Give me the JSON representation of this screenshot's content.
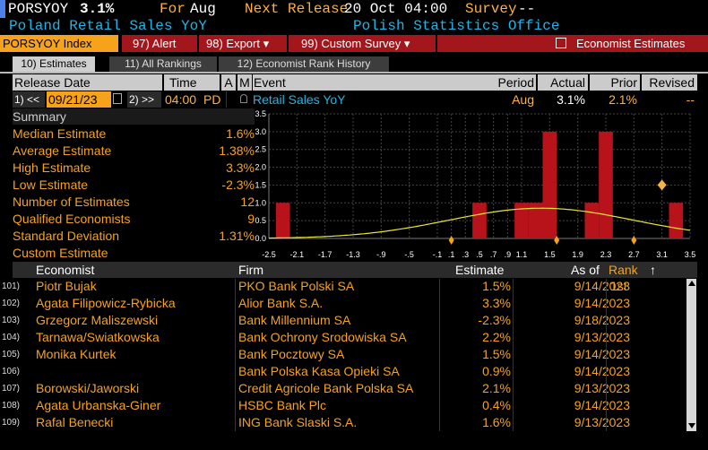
{
  "ticker": {
    "code": "PORSYOY",
    "value": "3.1%",
    "for_label": "For",
    "for_period": "Aug",
    "next_release_label": "Next Release",
    "next_release_value": "20 Oct 04:00",
    "survey_label": "Survey",
    "survey_value": "--",
    "name": "Poland Retail Sales YoY",
    "source": "Polish Statistics Office"
  },
  "menu": {
    "index_label": "PORSYOY Index",
    "alert": "97) Alert",
    "export": "98) Export ▾",
    "custom_survey": "99) Custom Survey ▾",
    "economist_estimates": "Economist Estimates"
  },
  "tabs": [
    {
      "label": "10) Estimates"
    },
    {
      "label": "11) All Rankings"
    },
    {
      "label": "12) Economist Rank History"
    }
  ],
  "event_header": {
    "release_date": "Release Date",
    "time": "Time",
    "a": "A",
    "m": "M",
    "event": "Event",
    "period": "Period",
    "actual": "Actual",
    "prior": "Prior",
    "revised": "Revised"
  },
  "event_row": {
    "prev_btn": "1) <<",
    "date": "09/21/23",
    "next_btn": "2) >>",
    "time": "04:00",
    "tz": "PD",
    "event": "Retail Sales YoY",
    "period": "Aug",
    "actual": "3.1%",
    "prior": "2.1%",
    "revised": "--"
  },
  "summary": {
    "title": "Summary",
    "rows": [
      {
        "label": "Median Estimate",
        "value": "1.6%"
      },
      {
        "label": "Average Estimate",
        "value": "1.38%"
      },
      {
        "label": "High Estimate",
        "value": "3.3%"
      },
      {
        "label": "Low Estimate",
        "value": "-2.3%"
      },
      {
        "label": "Number of Estimates",
        "value": "12"
      },
      {
        "label": "Qualified Economists",
        "value": "9"
      },
      {
        "label": "Standard Deviation",
        "value": "1.31%"
      },
      {
        "label": "Custom Estimate",
        "value": ""
      }
    ]
  },
  "chart_data": {
    "type": "bar",
    "categories": [
      "-2.5",
      "-2.1",
      "-1.7",
      "-1.3",
      "-.9",
      "-.5",
      "-.1",
      ".3",
      ".5",
      ".7",
      ".9",
      "1.1",
      "1.5",
      "1.9",
      "2.3",
      "2.7",
      "3.1",
      "3.5"
    ],
    "x_ticks": [
      "-2.5",
      "-2.1",
      "-1.7",
      "-1.3",
      "-.9",
      "-.5",
      "-.1",
      ".1",
      ".3",
      ".5",
      ".7",
      ".9",
      "1.1",
      "1.5",
      "1.9",
      "2.3",
      "2.7",
      "3.1",
      "3.5"
    ],
    "y_ticks": [
      "0.0",
      "0.5",
      "1.0",
      "1.5",
      "2.0",
      "2.5",
      "3.0",
      "3.5"
    ],
    "ylim": [
      0,
      3.5
    ],
    "xlim": [
      -2.5,
      3.5
    ],
    "bars": [
      {
        "x": -2.3,
        "count": 1
      },
      {
        "x": 0.5,
        "count": 1
      },
      {
        "x": 1.1,
        "count": 1
      },
      {
        "x": 1.3,
        "count": 1
      },
      {
        "x": 1.5,
        "count": 3
      },
      {
        "x": 2.1,
        "count": 1
      },
      {
        "x": 2.3,
        "count": 3
      },
      {
        "x": 3.3,
        "count": 1
      }
    ],
    "bar_color": "#b8131b",
    "curve_color": "#e9e43a",
    "grid": true,
    "markers": [
      {
        "x": 0.1,
        "kind": "tick"
      },
      {
        "x": 1.6,
        "kind": "tick"
      },
      {
        "x": 2.7,
        "kind": "tick"
      },
      {
        "x": 3.1,
        "kind": "diamond",
        "y": 1.5
      }
    ]
  },
  "table": {
    "headers": {
      "economist": "Economist",
      "firm": "Firm",
      "estimate": "Estimate",
      "as_of": "As of",
      "rank": "Rank",
      "sort_arrow": "↑"
    },
    "rows": [
      {
        "num": "101)",
        "economist": "Piotr Bujak",
        "firm": "PKO Bank Polski SA",
        "estimate": "1.5%",
        "as_of": "9/14/2023",
        "rank": "1st"
      },
      {
        "num": "102)",
        "economist": "Agata Filipowicz-Rybicka",
        "firm": "Alior Bank S.A.",
        "estimate": "3.3%",
        "as_of": "9/14/2023",
        "rank": ""
      },
      {
        "num": "103)",
        "economist": "Grzegorz Maliszewski",
        "firm": "Bank Millennium SA",
        "estimate": "-2.3%",
        "as_of": "9/18/2023",
        "rank": ""
      },
      {
        "num": "104)",
        "economist": "Tarnawa/Swiatkowska",
        "firm": "Bank Ochrony Srodowiska SA",
        "estimate": "2.2%",
        "as_of": "9/13/2023",
        "rank": ""
      },
      {
        "num": "105)",
        "economist": "Monika Kurtek",
        "firm": "Bank Pocztowy SA",
        "estimate": "1.5%",
        "as_of": "9/14/2023",
        "rank": ""
      },
      {
        "num": "106)",
        "economist": "",
        "firm": "Bank Polska Kasa Opieki SA",
        "estimate": "0.9%",
        "as_of": "9/14/2023",
        "rank": ""
      },
      {
        "num": "107)",
        "economist": "Borowski/Jaworski",
        "firm": "Credit Agricole Bank Polska SA",
        "estimate": "2.1%",
        "as_of": "9/13/2023",
        "rank": ""
      },
      {
        "num": "108)",
        "economist": "Agata Urbanska-Giner",
        "firm": "HSBC Bank Plc",
        "estimate": "0.4%",
        "as_of": "9/14/2023",
        "rank": ""
      },
      {
        "num": "109)",
        "economist": "Rafal Benecki",
        "firm": "ING Bank Slaski S.A.",
        "estimate": "1.6%",
        "as_of": "9/13/2023",
        "rank": ""
      }
    ]
  }
}
